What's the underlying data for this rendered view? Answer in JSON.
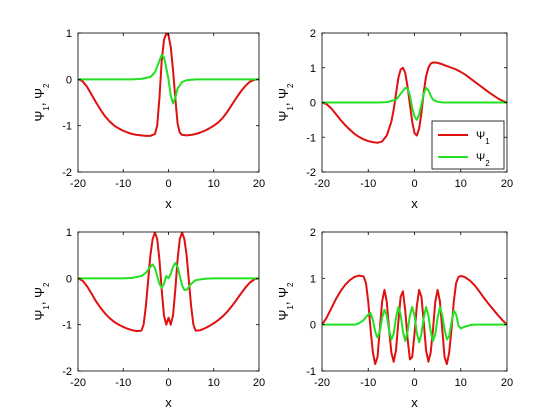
{
  "chart_data": [
    {
      "type": "line",
      "xlabel": "x",
      "ylabel": "Ψ1, Ψ2",
      "xlim": [
        -20,
        20
      ],
      "ylim": [
        -2,
        1
      ],
      "xticks": [
        -20,
        -10,
        0,
        10,
        20
      ],
      "yticks": [
        -2,
        -1,
        0,
        1
      ],
      "grid": false,
      "series": [
        {
          "name": "Ψ1",
          "color": "#e01010",
          "x": [
            -20,
            -19,
            -18,
            -17,
            -16,
            -15,
            -14,
            -13,
            -12,
            -11,
            -10,
            -9,
            -8,
            -7,
            -6,
            -5,
            -4,
            -3,
            -2.5,
            -2,
            -1.5,
            -1,
            -0.5,
            0,
            0.5,
            1,
            1.5,
            2,
            2.5,
            3,
            4,
            5,
            6,
            7,
            8,
            9,
            10,
            11,
            12,
            13,
            14,
            15,
            16,
            17,
            18,
            19,
            20
          ],
          "y": [
            0,
            -0.04,
            -0.16,
            -0.33,
            -0.5,
            -0.66,
            -0.8,
            -0.91,
            -1.0,
            -1.06,
            -1.11,
            -1.15,
            -1.18,
            -1.2,
            -1.21,
            -1.22,
            -1.22,
            -1.18,
            -1.0,
            -0.4,
            0.4,
            0.85,
            0.99,
            0.95,
            0.7,
            0.2,
            -0.4,
            -0.95,
            -1.15,
            -1.2,
            -1.21,
            -1.2,
            -1.18,
            -1.15,
            -1.11,
            -1.06,
            -1.0,
            -0.93,
            -0.83,
            -0.7,
            -0.55,
            -0.4,
            -0.26,
            -0.14,
            -0.05,
            -0.01,
            0
          ]
        },
        {
          "name": "Ψ2",
          "color": "#22e022",
          "x": [
            -20,
            -8,
            -6,
            -4,
            -3,
            -2,
            -1.5,
            -1,
            -0.5,
            0,
            0.5,
            1,
            1.5,
            2,
            3,
            4,
            6,
            8,
            20
          ],
          "y": [
            0,
            0,
            0.01,
            0.05,
            0.15,
            0.4,
            0.53,
            0.48,
            0.25,
            0.0,
            -0.35,
            -0.52,
            -0.4,
            -0.2,
            -0.06,
            -0.02,
            0,
            0,
            0
          ]
        }
      ]
    },
    {
      "type": "line",
      "xlabel": "x",
      "ylabel": "Ψ1, Ψ2",
      "xlim": [
        -20,
        20
      ],
      "ylim": [
        -2,
        2
      ],
      "xticks": [
        -20,
        -10,
        0,
        10,
        20
      ],
      "yticks": [
        -2,
        -1,
        0,
        1,
        2
      ],
      "grid": false,
      "legend": {
        "position": "bottom-right",
        "entries": [
          "Ψ1",
          "Ψ2"
        ]
      },
      "series": [
        {
          "name": "Ψ1",
          "color": "#e01010",
          "x": [
            -20,
            -19,
            -18,
            -17,
            -16,
            -15,
            -14,
            -13,
            -12,
            -11,
            -10,
            -9,
            -8,
            -7,
            -6,
            -5,
            -4.5,
            -4,
            -3.5,
            -3,
            -2.5,
            -2,
            -1.5,
            -1,
            -0.5,
            0,
            0.5,
            1,
            1.5,
            2,
            2.5,
            3,
            3.5,
            4,
            4.5,
            5,
            6,
            7,
            8,
            9,
            10,
            11,
            12,
            13,
            14,
            15,
            16,
            17,
            18,
            19,
            20
          ],
          "y": [
            0,
            -0.05,
            -0.17,
            -0.33,
            -0.5,
            -0.65,
            -0.78,
            -0.9,
            -0.99,
            -1.06,
            -1.11,
            -1.14,
            -1.16,
            -1.12,
            -0.95,
            -0.55,
            -0.2,
            0.25,
            0.7,
            0.95,
            1.0,
            0.85,
            0.45,
            -0.05,
            -0.55,
            -0.88,
            -0.95,
            -0.75,
            -0.3,
            0.3,
            0.75,
            1.0,
            1.12,
            1.15,
            1.15,
            1.14,
            1.1,
            1.05,
            1.0,
            0.95,
            0.88,
            0.8,
            0.7,
            0.6,
            0.5,
            0.4,
            0.3,
            0.21,
            0.12,
            0.05,
            0
          ]
        },
        {
          "name": "Ψ2",
          "color": "#22e022",
          "x": [
            -20,
            -8,
            -6,
            -4,
            -3,
            -2,
            -1.5,
            -1,
            -0.5,
            0,
            0.5,
            1,
            1.5,
            2,
            2.5,
            3,
            3.5,
            4,
            5,
            6,
            8,
            20
          ],
          "y": [
            0,
            0,
            0.01,
            0.08,
            0.25,
            0.42,
            0.4,
            0.2,
            -0.15,
            -0.4,
            -0.5,
            -0.35,
            -0.05,
            0.25,
            0.42,
            0.35,
            0.2,
            0.08,
            0.02,
            0.005,
            0,
            0
          ]
        }
      ]
    },
    {
      "type": "line",
      "xlabel": "x",
      "ylabel": "Ψ1, Ψ2",
      "xlim": [
        -20,
        20
      ],
      "ylim": [
        -2,
        1
      ],
      "xticks": [
        -20,
        -10,
        0,
        10,
        20
      ],
      "yticks": [
        -2,
        -1,
        0,
        1
      ],
      "grid": false,
      "series": [
        {
          "name": "Ψ1",
          "color": "#e01010",
          "x": [
            -20,
            -19,
            -18,
            -17,
            -16,
            -15,
            -14,
            -13,
            -12,
            -11,
            -10,
            -9,
            -8,
            -7,
            -6,
            -5.5,
            -5,
            -4.5,
            -4,
            -3.5,
            -3,
            -2.5,
            -2,
            -1.5,
            -1,
            -0.5,
            0,
            0.5,
            1,
            1.5,
            2,
            2.5,
            3,
            3.5,
            4,
            4.5,
            5,
            5.5,
            6,
            7,
            8,
            9,
            10,
            11,
            12,
            13,
            14,
            15,
            16,
            17,
            18,
            19,
            20
          ],
          "y": [
            0,
            -0.05,
            -0.17,
            -0.33,
            -0.5,
            -0.64,
            -0.76,
            -0.86,
            -0.94,
            -1.0,
            -1.05,
            -1.09,
            -1.12,
            -1.14,
            -1.13,
            -1.0,
            -0.6,
            -0.05,
            0.5,
            0.85,
            0.99,
            0.85,
            0.4,
            -0.25,
            -0.8,
            -1.0,
            -0.85,
            -1.0,
            -0.8,
            -0.25,
            0.4,
            0.85,
            0.99,
            0.85,
            0.5,
            -0.05,
            -0.6,
            -1.0,
            -1.13,
            -1.12,
            -1.08,
            -1.03,
            -0.97,
            -0.9,
            -0.82,
            -0.72,
            -0.6,
            -0.47,
            -0.33,
            -0.2,
            -0.09,
            -0.02,
            0
          ]
        },
        {
          "name": "Ψ2",
          "color": "#22e022",
          "x": [
            -20,
            -10,
            -8,
            -6,
            -5,
            -4,
            -3.5,
            -3,
            -2.5,
            -2,
            -1.5,
            -1,
            -0.5,
            0,
            0.5,
            1,
            1.5,
            2,
            2.5,
            3,
            3.5,
            4,
            5,
            6,
            8,
            10,
            20
          ],
          "y": [
            0,
            0,
            0.01,
            0.05,
            0.12,
            0.25,
            0.3,
            0.22,
            0.05,
            -0.12,
            -0.2,
            -0.12,
            0.05,
            0.0,
            0.1,
            0.25,
            0.33,
            0.25,
            0.05,
            -0.15,
            -0.25,
            -0.25,
            -0.12,
            -0.04,
            -0.01,
            0,
            0
          ]
        }
      ]
    },
    {
      "type": "line",
      "xlabel": "x",
      "ylabel": "Ψ1, Ψ2",
      "xlim": [
        -20,
        20
      ],
      "ylim": [
        -1,
        2
      ],
      "xticks": [
        -20,
        -10,
        0,
        10,
        20
      ],
      "yticks": [
        -1,
        0,
        1,
        2
      ],
      "grid": false,
      "series": [
        {
          "name": "Ψ1",
          "color": "#e01010",
          "x": [
            -20,
            -19,
            -18,
            -17,
            -16,
            -15,
            -14,
            -13,
            -12,
            -11,
            -10.5,
            -10,
            -9.5,
            -9,
            -8.5,
            -8,
            -7.5,
            -7,
            -6.5,
            -6,
            -5.5,
            -5,
            -4.5,
            -4,
            -3.5,
            -3,
            -2.5,
            -2,
            -1.5,
            -1,
            -0.5,
            0,
            0.5,
            1,
            1.5,
            2,
            2.5,
            3,
            3.5,
            4,
            4.5,
            5,
            5.5,
            6,
            6.5,
            7,
            7.5,
            8,
            8.5,
            9,
            9.5,
            10,
            10.5,
            11,
            12,
            13,
            14,
            15,
            16,
            17,
            18,
            19,
            20
          ],
          "y": [
            0,
            0.15,
            0.35,
            0.55,
            0.72,
            0.86,
            0.96,
            1.03,
            1.06,
            1.04,
            0.9,
            0.5,
            -0.1,
            -0.6,
            -0.85,
            -0.7,
            -0.1,
            0.5,
            0.75,
            0.5,
            -0.1,
            -0.6,
            -0.8,
            -0.55,
            0.05,
            0.6,
            0.72,
            0.3,
            -0.3,
            -0.75,
            -0.7,
            -0.2,
            0.4,
            0.75,
            0.6,
            0.05,
            -0.55,
            -0.8,
            -0.6,
            -0.1,
            0.5,
            0.75,
            0.5,
            -0.1,
            -0.7,
            -0.85,
            -0.6,
            -0.1,
            0.5,
            0.9,
            1.03,
            1.05,
            1.04,
            1.02,
            0.95,
            0.85,
            0.72,
            0.58,
            0.45,
            0.33,
            0.21,
            0.1,
            0
          ]
        },
        {
          "name": "Ψ2",
          "color": "#22e022",
          "x": [
            -20,
            -13,
            -12,
            -11,
            -10,
            -9.5,
            -9,
            -8.5,
            -8,
            -7.5,
            -7,
            -6.5,
            -6,
            -5.5,
            -5,
            -4.5,
            -4,
            -3.5,
            -3,
            -2.5,
            -2,
            -1.5,
            -1,
            -0.5,
            0,
            0.5,
            1,
            1.5,
            2,
            2.5,
            3,
            3.5,
            4,
            4.5,
            5,
            5.5,
            6,
            6.5,
            7,
            7.5,
            8,
            8.5,
            9,
            9.5,
            10,
            11,
            12,
            13,
            20
          ],
          "y": [
            0,
            0.0,
            0.03,
            0.1,
            0.22,
            0.25,
            0.1,
            -0.15,
            -0.28,
            -0.15,
            0.15,
            0.32,
            0.2,
            -0.12,
            -0.32,
            -0.2,
            0.15,
            0.38,
            0.22,
            -0.15,
            -0.35,
            -0.15,
            0.2,
            0.38,
            0.2,
            -0.18,
            -0.38,
            -0.2,
            0.15,
            0.38,
            0.2,
            -0.15,
            -0.35,
            -0.2,
            0.15,
            0.38,
            0.2,
            -0.1,
            -0.32,
            -0.25,
            0.05,
            0.3,
            0.22,
            -0.02,
            -0.08,
            -0.04,
            -0.01,
            0,
            0
          ]
        }
      ]
    }
  ]
}
